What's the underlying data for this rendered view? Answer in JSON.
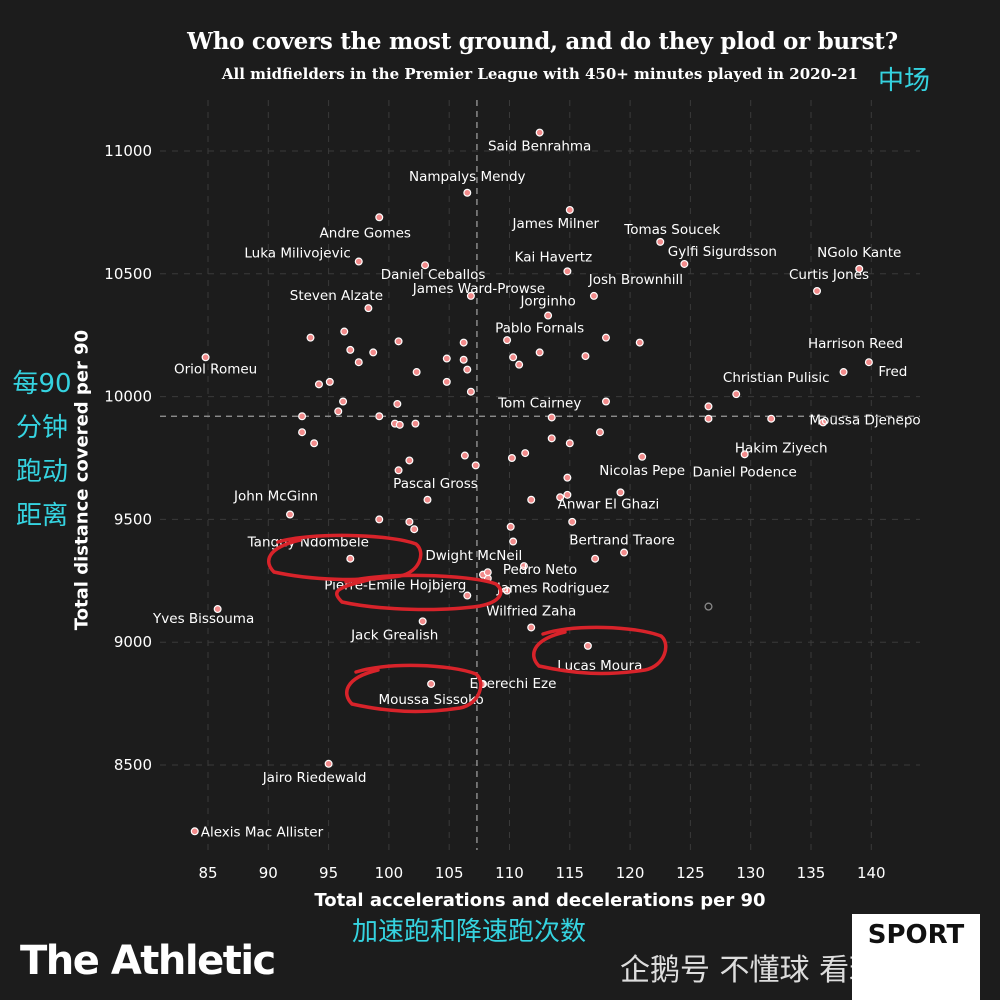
{
  "chart_data": {
    "type": "scatter",
    "title": "Who covers the most ground, and do they plod or burst?",
    "subtitle": "All midfielders in the Premier League with 450+ minutes played in 2020-21",
    "xlabel": "Total accelerations and decelerations per 90",
    "ylabel": "Total distance covered per 90",
    "xlim": [
      82,
      142
    ],
    "ylim": [
      8150,
      11200
    ],
    "x_ticks": [
      85,
      90,
      95,
      100,
      105,
      110,
      115,
      120,
      125,
      130,
      135,
      140
    ],
    "y_ticks": [
      8500,
      9000,
      9500,
      10000,
      10500,
      11000
    ],
    "grid": true,
    "median_x": 107.3,
    "median_y": 9920,
    "point_color": "#f28b8b",
    "labeled_points": [
      {
        "name": "Said Benrahma",
        "x": 112.5,
        "y": 11075
      },
      {
        "name": "Nampalys Mendy",
        "x": 106.5,
        "y": 10830
      },
      {
        "name": "Andre Gomes",
        "x": 99.2,
        "y": 10730
      },
      {
        "name": "James Milner",
        "x": 115.0,
        "y": 10760
      },
      {
        "name": "Tomas Soucek",
        "x": 122.5,
        "y": 10630
      },
      {
        "name": "Gylfi Sigurdsson",
        "x": 124.5,
        "y": 10540
      },
      {
        "name": "NGolo Kante",
        "x": 139.0,
        "y": 10520
      },
      {
        "name": "Luka Milivojevic",
        "x": 97.5,
        "y": 10550
      },
      {
        "name": "Kai Havertz",
        "x": 114.8,
        "y": 10510
      },
      {
        "name": "Daniel Ceballos",
        "x": 103.0,
        "y": 10535
      },
      {
        "name": "Josh Brownhill",
        "x": 117.0,
        "y": 10410
      },
      {
        "name": "Curtis Jones",
        "x": 135.5,
        "y": 10430
      },
      {
        "name": "Steven Alzate",
        "x": 98.3,
        "y": 10360
      },
      {
        "name": "James Ward-Prowse",
        "x": 106.8,
        "y": 10410
      },
      {
        "name": "Jorginho",
        "x": 113.2,
        "y": 10330
      },
      {
        "name": "Pablo Fornals",
        "x": 112.5,
        "y": 10180
      },
      {
        "name": "Harrison Reed",
        "x": 137.7,
        "y": 10100
      },
      {
        "name": "Fred",
        "x": 139.8,
        "y": 10140
      },
      {
        "name": "Oriol Romeu",
        "x": 84.8,
        "y": 10160
      },
      {
        "name": "Christian Pulisic",
        "x": 128.8,
        "y": 10010
      },
      {
        "name": "Tom Cairney",
        "x": 113.5,
        "y": 9915
      },
      {
        "name": "Moussa Djenepo",
        "x": 136.0,
        "y": 9895
      },
      {
        "name": "Hakim Ziyech",
        "x": 131.7,
        "y": 9910
      },
      {
        "name": "Daniel Podence",
        "x": 129.5,
        "y": 9765
      },
      {
        "name": "Nicolas Pepe",
        "x": 121.0,
        "y": 9755
      },
      {
        "name": "Pascal Gross",
        "x": 103.2,
        "y": 9580
      },
      {
        "name": "John McGinn",
        "x": 91.8,
        "y": 9520
      },
      {
        "name": "Anwar El Ghazi",
        "x": 119.2,
        "y": 9610
      },
      {
        "name": "Bertrand Traore",
        "x": 119.5,
        "y": 9365
      },
      {
        "name": "Tanguy Ndombele",
        "x": 96.8,
        "y": 9340
      },
      {
        "name": "Dwight McNeil",
        "x": 108.2,
        "y": 9285
      },
      {
        "name": "Pedro Neto",
        "x": 111.2,
        "y": 9310
      },
      {
        "name": "Pierre-Emile Hojbjerg",
        "x": 106.5,
        "y": 9190
      },
      {
        "name": "James Rodriguez",
        "x": 109.8,
        "y": 9210
      },
      {
        "name": "Yves Bissouma",
        "x": 85.8,
        "y": 9135
      },
      {
        "name": "Wilfried Zaha",
        "x": 111.8,
        "y": 9060
      },
      {
        "name": "Jack Grealish",
        "x": 102.8,
        "y": 9085
      },
      {
        "name": "Lucas Moura",
        "x": 116.5,
        "y": 8985
      },
      {
        "name": "Eberechi Eze",
        "x": 107.8,
        "y": 8830
      },
      {
        "name": "Moussa Sissoko",
        "x": 103.5,
        "y": 8830
      },
      {
        "name": "Jairo Riedewald",
        "x": 95.0,
        "y": 8505
      },
      {
        "name": "Alexis Mac Allister",
        "x": 83.9,
        "y": 8230
      }
    ],
    "unlabeled_points": [
      {
        "x": 93.5,
        "y": 10240
      },
      {
        "x": 96.3,
        "y": 10265
      },
      {
        "x": 96.8,
        "y": 10190
      },
      {
        "x": 97.5,
        "y": 10140
      },
      {
        "x": 98.7,
        "y": 10180
      },
      {
        "x": 100.8,
        "y": 10225
      },
      {
        "x": 102.3,
        "y": 10100
      },
      {
        "x": 104.8,
        "y": 10155
      },
      {
        "x": 106.2,
        "y": 10220
      },
      {
        "x": 106.2,
        "y": 10150
      },
      {
        "x": 106.5,
        "y": 10110
      },
      {
        "x": 106.8,
        "y": 10020
      },
      {
        "x": 104.8,
        "y": 10060
      },
      {
        "x": 94.2,
        "y": 10050
      },
      {
        "x": 95.1,
        "y": 10060
      },
      {
        "x": 96.2,
        "y": 9980
      },
      {
        "x": 95.8,
        "y": 9940
      },
      {
        "x": 92.8,
        "y": 9920
      },
      {
        "x": 92.8,
        "y": 9855
      },
      {
        "x": 93.8,
        "y": 9810
      },
      {
        "x": 99.2,
        "y": 9920
      },
      {
        "x": 100.7,
        "y": 9970
      },
      {
        "x": 100.5,
        "y": 9890
      },
      {
        "x": 100.9,
        "y": 9885
      },
      {
        "x": 102.2,
        "y": 9890
      },
      {
        "x": 109.8,
        "y": 10230
      },
      {
        "x": 110.3,
        "y": 10160
      },
      {
        "x": 110.8,
        "y": 10130
      },
      {
        "x": 116.3,
        "y": 10165
      },
      {
        "x": 118.0,
        "y": 10240
      },
      {
        "x": 120.8,
        "y": 10220
      },
      {
        "x": 113.5,
        "y": 9830
      },
      {
        "x": 115.0,
        "y": 9810
      },
      {
        "x": 117.5,
        "y": 9855
      },
      {
        "x": 118.0,
        "y": 9980
      },
      {
        "x": 126.5,
        "y": 9960
      },
      {
        "x": 126.5,
        "y": 9910
      },
      {
        "x": 106.3,
        "y": 9760
      },
      {
        "x": 107.2,
        "y": 9720
      },
      {
        "x": 110.2,
        "y": 9750
      },
      {
        "x": 111.3,
        "y": 9770
      },
      {
        "x": 114.8,
        "y": 9670
      },
      {
        "x": 114.8,
        "y": 9600
      },
      {
        "x": 114.2,
        "y": 9590
      },
      {
        "x": 111.8,
        "y": 9580
      },
      {
        "x": 115.2,
        "y": 9490
      },
      {
        "x": 101.7,
        "y": 9740
      },
      {
        "x": 100.8,
        "y": 9700
      },
      {
        "x": 99.2,
        "y": 9500
      },
      {
        "x": 101.7,
        "y": 9490
      },
      {
        "x": 102.1,
        "y": 9460
      },
      {
        "x": 110.1,
        "y": 9470
      },
      {
        "x": 110.3,
        "y": 9410
      },
      {
        "x": 117.1,
        "y": 9340
      },
      {
        "x": 108.2,
        "y": 9260
      },
      {
        "x": 107.8,
        "y": 9275
      }
    ],
    "grey_points": [
      {
        "x": 126.5,
        "y": 9145
      }
    ]
  },
  "annotations_cn": {
    "top_right": "中场",
    "y_axis": [
      "每90",
      "分钟",
      "跑动",
      "距离"
    ],
    "x_axis": "加速跑和降速跑次数"
  },
  "highlighted": [
    "Tanguy Ndombele",
    "Pierre-Emile Hojbjerg",
    "Lucas Moura",
    "Moussa Sissoko"
  ],
  "highlight_color": "#d8232a",
  "footer": {
    "brand": "The Athletic",
    "badge": "SPORT",
    "watermark": "企鹅号 不懂球 看球"
  }
}
